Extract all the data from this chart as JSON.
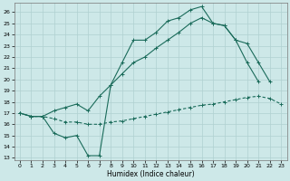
{
  "xlabel": "Humidex (Indice chaleur)",
  "bg_color": "#cde8e8",
  "line_color": "#1a6b5a",
  "grid_color": "#b0d0d0",
  "xlim": [
    -0.5,
    23.5
  ],
  "ylim": [
    12.8,
    26.8
  ],
  "xticks": [
    0,
    1,
    2,
    3,
    4,
    5,
    6,
    7,
    8,
    9,
    10,
    11,
    12,
    13,
    14,
    15,
    16,
    17,
    18,
    19,
    20,
    21,
    22,
    23
  ],
  "yticks": [
    13,
    14,
    15,
    16,
    17,
    18,
    19,
    20,
    21,
    22,
    23,
    24,
    25,
    26
  ],
  "curve1_x": [
    0,
    1,
    2,
    3,
    4,
    5,
    6,
    7,
    8,
    9,
    10,
    11,
    12,
    13,
    14,
    15,
    16,
    17,
    18,
    19,
    20,
    21
  ],
  "curve1_y": [
    17.0,
    16.7,
    16.7,
    15.2,
    14.8,
    15.0,
    13.2,
    13.2,
    19.5,
    21.5,
    23.5,
    23.5,
    24.2,
    25.2,
    25.5,
    26.2,
    26.5,
    25.0,
    24.8,
    23.5,
    21.5,
    19.8
  ],
  "curve2_x": [
    0,
    1,
    2,
    3,
    4,
    5,
    6,
    7,
    8,
    9,
    10,
    11,
    12,
    13,
    14,
    15,
    16,
    17,
    18,
    19,
    20,
    21,
    22
  ],
  "curve2_y": [
    17.0,
    16.7,
    16.7,
    17.2,
    17.5,
    17.8,
    17.2,
    18.5,
    19.5,
    20.5,
    21.5,
    22.0,
    22.8,
    23.5,
    24.2,
    25.0,
    25.5,
    25.0,
    24.8,
    23.5,
    23.2,
    21.5,
    19.8
  ],
  "curve3_x": [
    0,
    1,
    2,
    3,
    4,
    5,
    6,
    7,
    8,
    9,
    10,
    11,
    12,
    13,
    14,
    15,
    16,
    17,
    18,
    19,
    20,
    21,
    22,
    23
  ],
  "curve3_y": [
    17.0,
    16.7,
    16.7,
    16.5,
    16.2,
    16.2,
    16.0,
    16.0,
    16.2,
    16.3,
    16.5,
    16.7,
    16.9,
    17.1,
    17.3,
    17.5,
    17.7,
    17.8,
    18.0,
    18.2,
    18.4,
    18.5,
    18.3,
    17.8
  ]
}
